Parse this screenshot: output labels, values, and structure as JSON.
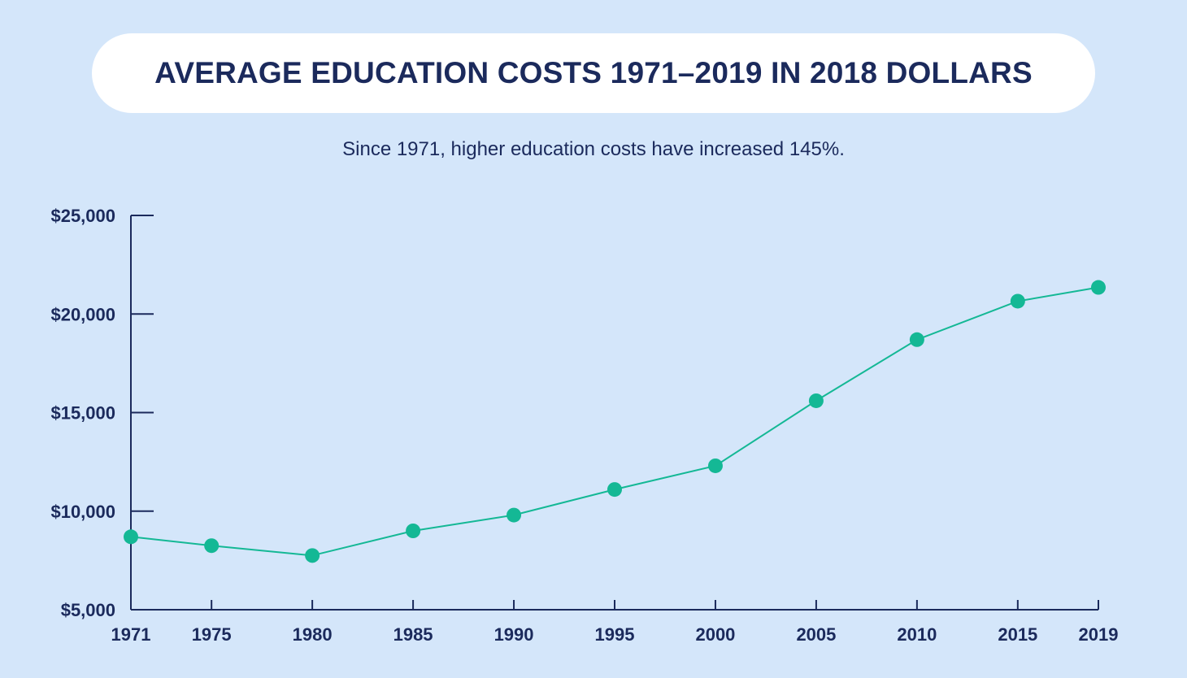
{
  "header": {
    "title": "AVERAGE EDUCATION COSTS 1971–2019 IN 2018 DOLLARS",
    "subtitle": "Since 1971, higher education costs have increased 145%."
  },
  "colors": {
    "background": "#d4e6fa",
    "axis": "#1b2a5c",
    "series": "#14b895"
  },
  "chart_data": {
    "type": "line",
    "title": "AVERAGE EDUCATION COSTS 1971–2019 IN 2018 DOLLARS",
    "subtitle": "Since 1971, higher education costs have increased 145%.",
    "xlabel": "",
    "ylabel": "",
    "x": [
      "1971",
      "1975",
      "1980",
      "1985",
      "1990",
      "1995",
      "2000",
      "2005",
      "2010",
      "2015",
      "2019"
    ],
    "series": [
      {
        "values": [
          8700,
          8250,
          7750,
          9000,
          9800,
          11100,
          12300,
          15600,
          18700,
          20650,
          21350
        ]
      }
    ],
    "ylim": [
      5000,
      25000
    ],
    "yticks": [
      5000,
      10000,
      15000,
      20000,
      25000
    ],
    "ytick_labels": [
      "$5,000",
      "$10,000",
      "$15,000",
      "$20,000",
      "$25,000"
    ],
    "grid": false,
    "legend": "none"
  }
}
